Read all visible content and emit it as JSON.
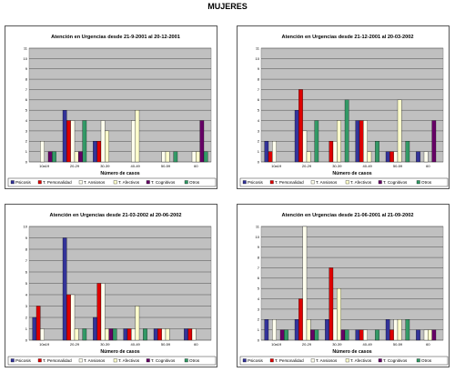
{
  "page": {
    "title": "MUJERES"
  },
  "legend_colors": [
    "#333399",
    "#dd0000",
    "#ffffee",
    "#ffffcc",
    "#660066",
    "#339966"
  ],
  "chart_data": [
    {
      "type": "bar",
      "title": "Atención en Urgencias desde 21-9-2001 al 20-12-2001",
      "xlabel": "Número de casos",
      "ylabel": "",
      "ylim": [
        0,
        11
      ],
      "yticks": [
        "0",
        "1",
        "2",
        "3",
        "4",
        "5",
        "6",
        "7",
        "8",
        "9",
        "10",
        "11"
      ],
      "categories": [
        "10a19",
        "20-29",
        "30-39",
        "40-49",
        "50-59",
        "60"
      ],
      "series": [
        {
          "name": "Psicosis",
          "values": [
            0,
            5,
            2,
            0,
            0,
            0
          ]
        },
        {
          "name": "T. Personalidad",
          "values": [
            0,
            4,
            2,
            0,
            0,
            0
          ]
        },
        {
          "name": "T. Ansiosos",
          "values": [
            2,
            4,
            4,
            4,
            1,
            1
          ]
        },
        {
          "name": "T. Afectivos",
          "values": [
            0,
            1,
            3,
            5,
            1,
            1
          ]
        },
        {
          "name": "T. Cognitivos",
          "values": [
            1,
            1,
            0,
            0,
            0,
            4
          ]
        },
        {
          "name": "Otros",
          "values": [
            1,
            4,
            0,
            0,
            1,
            1
          ]
        }
      ]
    },
    {
      "type": "bar",
      "title": "Atención en Urgencias desde 21-12-2001 al 20-03-2002",
      "xlabel": "Número de casos",
      "ylabel": "",
      "ylim": [
        0,
        11
      ],
      "yticks": [
        "0",
        "1",
        "2",
        "3",
        "4",
        "5",
        "6",
        "7",
        "8",
        "9",
        "10",
        "11"
      ],
      "categories": [
        "10a19",
        "20-29",
        "30-39",
        "40-49",
        "50-59",
        "60"
      ],
      "series": [
        {
          "name": "Psicosis",
          "values": [
            2,
            5,
            0,
            4,
            1,
            1
          ]
        },
        {
          "name": "T. Personalidad",
          "values": [
            1,
            7,
            2,
            4,
            1,
            0
          ]
        },
        {
          "name": "T. Ansiosos",
          "values": [
            2,
            3,
            2,
            4,
            1,
            1
          ]
        },
        {
          "name": "T. Afectivos",
          "values": [
            0,
            1,
            4,
            1,
            6,
            0
          ]
        },
        {
          "name": "T. Cognitivos",
          "values": [
            0,
            0,
            0,
            0,
            0,
            4
          ]
        },
        {
          "name": "Otros",
          "values": [
            0,
            4,
            6,
            2,
            2,
            0
          ]
        }
      ]
    },
    {
      "type": "bar",
      "title": "Atención en Urgencias desde 21-03-2002 al 20-06-2002",
      "xlabel": "Número de casos",
      "ylabel": "",
      "ylim": [
        0,
        10
      ],
      "yticks": [
        "0",
        "1",
        "2",
        "3",
        "4",
        "5",
        "6",
        "7",
        "8",
        "9",
        "10"
      ],
      "categories": [
        "10a19",
        "20-29",
        "30-39",
        "40-49",
        "50-59",
        "60"
      ],
      "series": [
        {
          "name": "Psicosis",
          "values": [
            2,
            9,
            2,
            1,
            1,
            1
          ]
        },
        {
          "name": "T. Personalidad",
          "values": [
            3,
            4,
            5,
            1,
            1,
            1
          ]
        },
        {
          "name": "T. Ansiosos",
          "values": [
            1,
            4,
            5,
            1,
            1,
            1
          ]
        },
        {
          "name": "T. Afectivos",
          "values": [
            0,
            1,
            1,
            3,
            1,
            0
          ]
        },
        {
          "name": "T. Cognitivos",
          "values": [
            0,
            0,
            1,
            0,
            0,
            0
          ]
        },
        {
          "name": "Otros",
          "values": [
            0,
            1,
            1,
            1,
            0,
            0
          ]
        }
      ]
    },
    {
      "type": "bar",
      "title": "Atención en Urgencias desde 21-06-2001 al 21-09-2002",
      "xlabel": "Número de casos",
      "ylabel": "",
      "ylim": [
        0,
        11
      ],
      "yticks": [
        "0",
        "1",
        "2",
        "3",
        "4",
        "5",
        "6",
        "7",
        "8",
        "9",
        "10",
        "11"
      ],
      "categories": [
        "10a19",
        "20-29",
        "30-39",
        "40-49",
        "50-59",
        "60"
      ],
      "series": [
        {
          "name": "Psicosis",
          "values": [
            2,
            2,
            2,
            1,
            2,
            1
          ]
        },
        {
          "name": "T. Personalidad",
          "values": [
            0,
            4,
            7,
            1,
            1,
            0
          ]
        },
        {
          "name": "T. Ansiosos",
          "values": [
            2,
            11,
            3,
            1,
            2,
            1
          ]
        },
        {
          "name": "T. Afectivos",
          "values": [
            0,
            2,
            5,
            0,
            2,
            1
          ]
        },
        {
          "name": "T. Cognitivos",
          "values": [
            1,
            1,
            1,
            0,
            0,
            1
          ]
        },
        {
          "name": "Otros",
          "values": [
            1,
            1,
            1,
            1,
            2,
            0
          ]
        }
      ]
    }
  ]
}
